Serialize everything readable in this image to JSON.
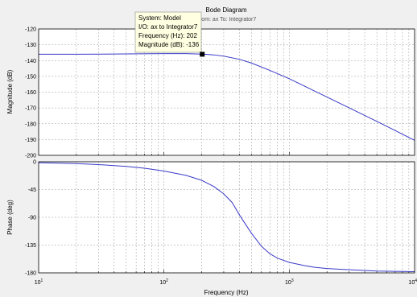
{
  "chart_data": {
    "type": "line",
    "title": "Bode Diagram",
    "subtitle": "From: ax  To: Integrator7",
    "xlabel": "Frequency  (Hz)",
    "xscale": "log",
    "xlim": [
      10,
      10000
    ],
    "x_ticks": [
      {
        "base": "10",
        "exp": "1"
      },
      {
        "base": "10",
        "exp": "2"
      },
      {
        "base": "10",
        "exp": "3"
      },
      {
        "base": "10",
        "exp": "4"
      }
    ],
    "grid": true,
    "series_color": "#3a3ac8",
    "panels": [
      {
        "name": "magnitude",
        "ylabel": "Magnitude (dB)",
        "ylim": [
          -200,
          -120
        ],
        "yticks": [
          "-120",
          "-130",
          "-140",
          "-150",
          "-160",
          "-170",
          "-180",
          "-190",
          "-200"
        ],
        "x": [
          10,
          20,
          50,
          100,
          150,
          200,
          250,
          300,
          400,
          500,
          700,
          1000,
          1500,
          2000,
          3000,
          5000,
          7000,
          10000
        ],
        "values": [
          -136,
          -136,
          -135.8,
          -135.6,
          -135.6,
          -135.9,
          -136.4,
          -137.2,
          -139.2,
          -141.6,
          -146.2,
          -151.5,
          -158.3,
          -163.1,
          -169.9,
          -178.5,
          -184.3,
          -190.5
        ]
      },
      {
        "name": "phase",
        "ylabel": "Phase (deg)",
        "ylim": [
          -180,
          0
        ],
        "yticks": [
          "0",
          "-45",
          "-90",
          "-135",
          "-180"
        ],
        "x": [
          10,
          20,
          30,
          50,
          70,
          100,
          150,
          200,
          250,
          300,
          350,
          400,
          450,
          500,
          600,
          700,
          800,
          1000,
          1300,
          1600,
          2000,
          3000,
          5000,
          7000,
          10000
        ],
        "values": [
          -1.5,
          -3,
          -4.5,
          -7.5,
          -10.5,
          -15,
          -22,
          -30,
          -40,
          -52,
          -66,
          -86,
          -102,
          -116,
          -137,
          -149,
          -156,
          -163,
          -168,
          -171,
          -173,
          -175,
          -177,
          -177.5,
          -178
        ]
      }
    ]
  },
  "datatip": {
    "lines": [
      "System: Model",
      "I/O: ax to Integrator7",
      "Frequency (Hz): 202",
      "Magnitude (dB): -136"
    ],
    "x": 202,
    "y": -136
  }
}
